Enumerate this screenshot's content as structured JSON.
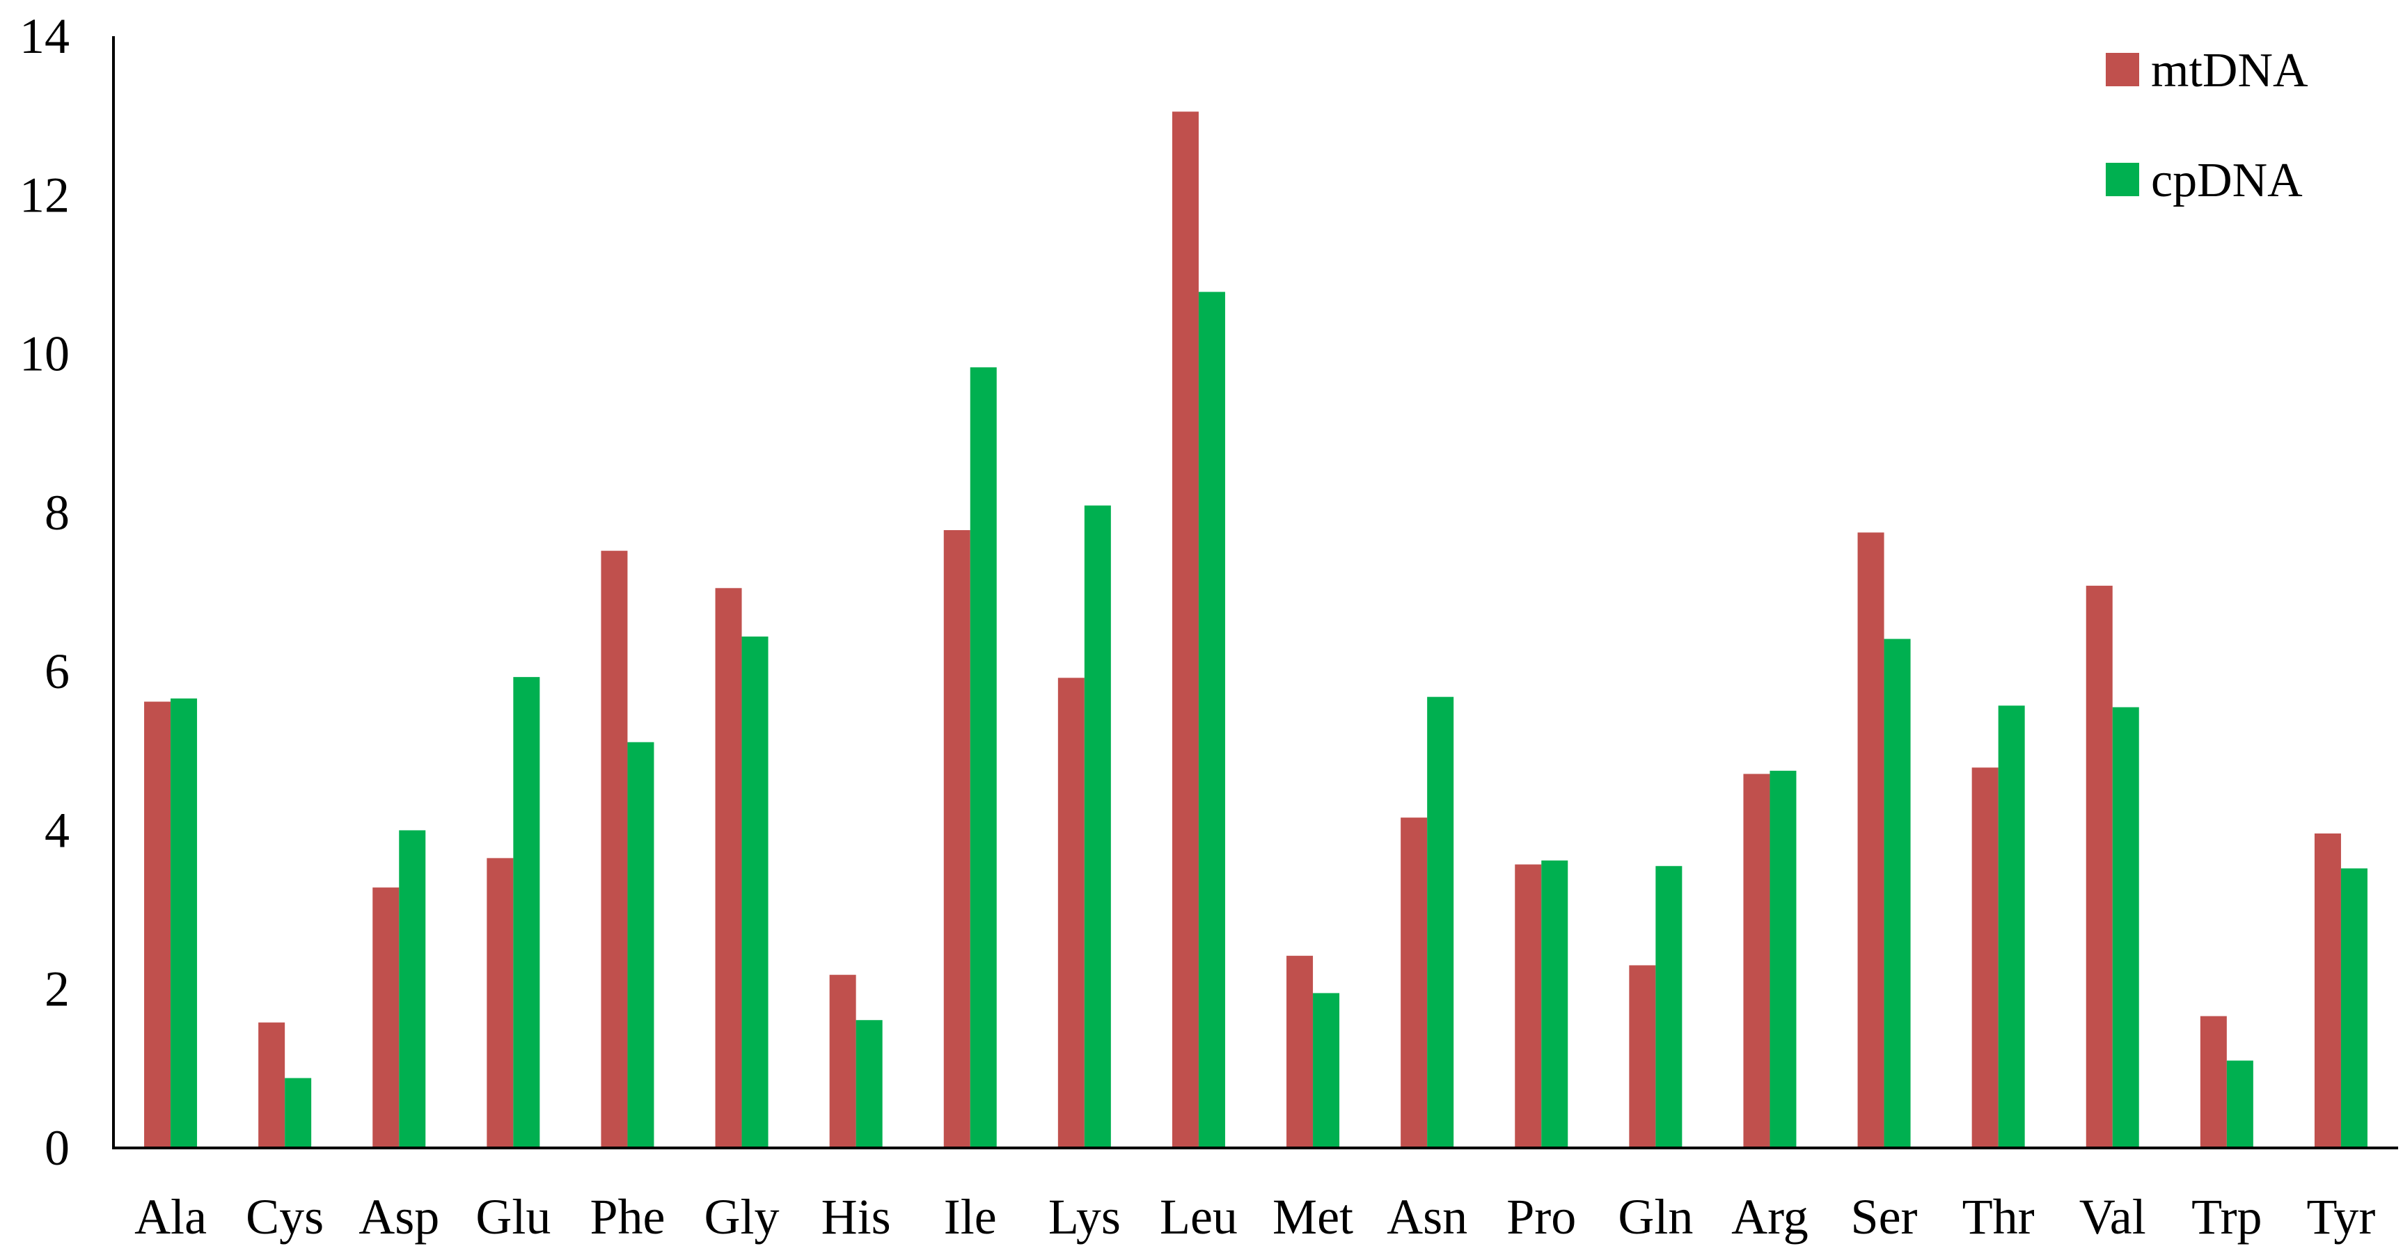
{
  "chart_data": {
    "type": "bar",
    "categories": [
      "Ala",
      "Cys",
      "Asp",
      "Glu",
      "Phe",
      "Gly",
      "His",
      "Ile",
      "Lys",
      "Leu",
      "Met",
      "Asn",
      "Pro",
      "Gln",
      "Arg",
      "Ser",
      "Thr",
      "Val",
      "Trp",
      "Tyr"
    ],
    "series": [
      {
        "name": "mtDNA",
        "color": "#C0504D",
        "values": [
          5.62,
          1.58,
          3.28,
          3.65,
          7.52,
          7.05,
          2.18,
          7.78,
          5.92,
          13.05,
          2.42,
          4.16,
          3.57,
          2.3,
          4.71,
          7.75,
          4.79,
          7.08,
          1.66,
          3.96
        ]
      },
      {
        "name": "cpDNA",
        "color": "#00B050",
        "values": [
          5.66,
          0.88,
          4.0,
          5.93,
          5.11,
          6.44,
          1.61,
          9.83,
          8.09,
          10.78,
          1.95,
          5.68,
          3.62,
          3.55,
          4.75,
          6.41,
          5.57,
          5.55,
          1.1,
          3.52
        ]
      }
    ],
    "ylim": [
      0,
      14
    ],
    "yticks": [
      "0",
      "2",
      "4",
      "6",
      "8",
      "10",
      "12",
      "14"
    ],
    "legend_position": "top-right",
    "grid": false
  }
}
